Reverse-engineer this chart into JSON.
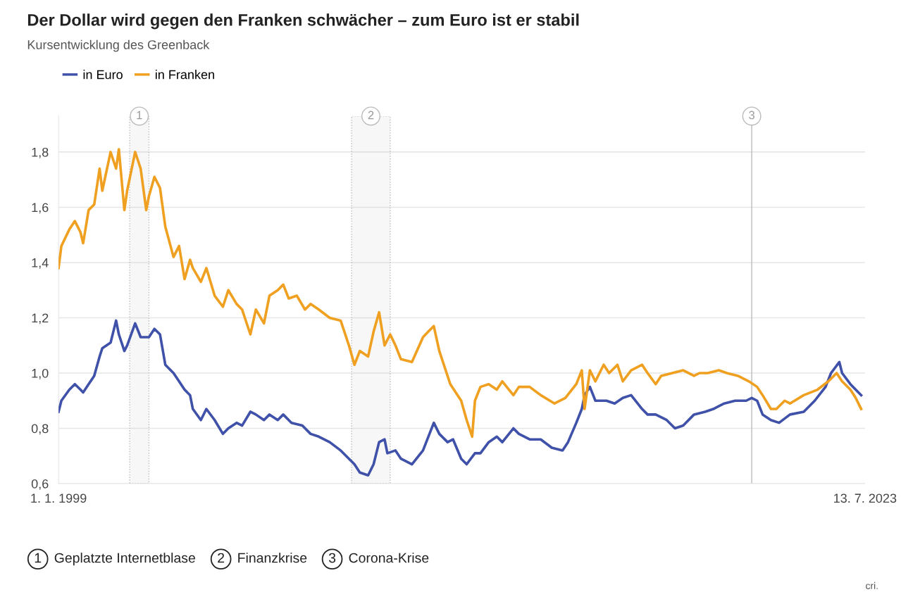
{
  "chart_data": {
    "type": "line",
    "title": "Der Dollar wird gegen den Franken schwächer – zum Euro ist er stabil",
    "subtitle": "Kursentwicklung des Greenback",
    "legend": "top left",
    "grid": "y",
    "line_style": "solid",
    "xlim": [
      "1999-01-01",
      "2023-07-13"
    ],
    "xticks": [
      {
        "value": "1999-01-01",
        "label": "1. 1. 1999"
      },
      {
        "value": "2023-07-13",
        "label": "13. 7. 2023"
      }
    ],
    "ylim": [
      0.6,
      1.93
    ],
    "yticks": [
      {
        "value": 0.6,
        "label": "0,6"
      },
      {
        "value": 0.8,
        "label": "0,8"
      },
      {
        "value": 1.0,
        "label": "1,0"
      },
      {
        "value": 1.2,
        "label": "1,2"
      },
      {
        "value": 1.4,
        "label": "1,4"
      },
      {
        "value": 1.6,
        "label": "1,6"
      },
      {
        "value": 1.8,
        "label": "1,8"
      }
    ],
    "series": [
      {
        "name": "in Euro",
        "color": "#3f51a8",
        "x": [
          "1999-01",
          "1999-02",
          "1999-05",
          "1999-07",
          "1999-09",
          "1999-10",
          "1999-12",
          "2000-02",
          "2000-04",
          "2000-05",
          "2000-08",
          "2000-10",
          "2000-11",
          "2001-01",
          "2001-02",
          "2001-05",
          "2001-07",
          "2001-10",
          "2001-12",
          "2002-02",
          "2002-04",
          "2002-07",
          "2002-09",
          "2002-11",
          "2003-01",
          "2003-02",
          "2003-05",
          "2003-07",
          "2003-10",
          "2004-01",
          "2004-03",
          "2004-06",
          "2004-08",
          "2004-11",
          "2005-01",
          "2005-04",
          "2005-06",
          "2005-09",
          "2005-11",
          "2006-02",
          "2006-06",
          "2006-09",
          "2006-12",
          "2007-04",
          "2007-08",
          "2007-11",
          "2008-01",
          "2008-03",
          "2008-06",
          "2008-08",
          "2008-10",
          "2008-12",
          "2009-01",
          "2009-04",
          "2009-06",
          "2009-10",
          "2010-02",
          "2010-06",
          "2010-08",
          "2010-11",
          "2011-01",
          "2011-04",
          "2011-06",
          "2011-09",
          "2011-11",
          "2012-02",
          "2012-05",
          "2012-07",
          "2012-11",
          "2013-01",
          "2013-05",
          "2013-09",
          "2014-01",
          "2014-05",
          "2014-07",
          "2014-10",
          "2014-12",
          "2015-01",
          "2015-03",
          "2015-05",
          "2015-09",
          "2015-12",
          "2016-03",
          "2016-06",
          "2016-10",
          "2016-12",
          "2017-03",
          "2017-07",
          "2017-10",
          "2018-01",
          "2018-05",
          "2018-09",
          "2018-12",
          "2019-04",
          "2019-08",
          "2019-12",
          "2020-02",
          "2020-04",
          "2020-06",
          "2020-09",
          "2020-12",
          "2021-04",
          "2021-09",
          "2022-01",
          "2022-05",
          "2022-07",
          "2022-10",
          "2022-11",
          "2023-02",
          "2023-04",
          "2023-06"
        ],
        "values": [
          0.86,
          0.9,
          0.94,
          0.96,
          0.94,
          0.93,
          0.96,
          0.99,
          1.06,
          1.09,
          1.11,
          1.19,
          1.14,
          1.08,
          1.1,
          1.18,
          1.13,
          1.13,
          1.16,
          1.14,
          1.03,
          1.0,
          0.97,
          0.94,
          0.92,
          0.87,
          0.83,
          0.87,
          0.83,
          0.78,
          0.8,
          0.82,
          0.81,
          0.86,
          0.85,
          0.83,
          0.85,
          0.83,
          0.85,
          0.82,
          0.81,
          0.78,
          0.77,
          0.75,
          0.72,
          0.69,
          0.67,
          0.64,
          0.63,
          0.67,
          0.75,
          0.76,
          0.71,
          0.72,
          0.69,
          0.67,
          0.72,
          0.82,
          0.78,
          0.75,
          0.76,
          0.69,
          0.67,
          0.71,
          0.71,
          0.75,
          0.77,
          0.75,
          0.8,
          0.78,
          0.76,
          0.76,
          0.73,
          0.72,
          0.75,
          0.82,
          0.87,
          0.92,
          0.95,
          0.9,
          0.9,
          0.89,
          0.91,
          0.92,
          0.87,
          0.85,
          0.85,
          0.83,
          0.8,
          0.81,
          0.85,
          0.86,
          0.87,
          0.89,
          0.9,
          0.9,
          0.91,
          0.9,
          0.85,
          0.83,
          0.82,
          0.85,
          0.86,
          0.9,
          0.95,
          1.0,
          1.04,
          1.0,
          0.96,
          0.94,
          0.92
        ]
      },
      {
        "name": "in Franken",
        "color": "#f0a020",
        "x": [
          "1999-01",
          "1999-02",
          "1999-05",
          "1999-07",
          "1999-09",
          "1999-10",
          "1999-12",
          "2000-02",
          "2000-04",
          "2000-05",
          "2000-08",
          "2000-10",
          "2000-11",
          "2001-01",
          "2001-02",
          "2001-05",
          "2001-07",
          "2001-09",
          "2001-10",
          "2001-12",
          "2002-02",
          "2002-04",
          "2002-07",
          "2002-09",
          "2002-11",
          "2003-01",
          "2003-02",
          "2003-05",
          "2003-07",
          "2003-10",
          "2004-01",
          "2004-03",
          "2004-06",
          "2004-08",
          "2004-11",
          "2005-01",
          "2005-04",
          "2005-06",
          "2005-09",
          "2005-11",
          "2006-01",
          "2006-04",
          "2006-07",
          "2006-09",
          "2006-12",
          "2007-04",
          "2007-08",
          "2007-11",
          "2008-01",
          "2008-03",
          "2008-06",
          "2008-08",
          "2008-10",
          "2008-12",
          "2009-02",
          "2009-04",
          "2009-06",
          "2009-10",
          "2010-02",
          "2010-04",
          "2010-06",
          "2010-08",
          "2010-12",
          "2011-04",
          "2011-06",
          "2011-08",
          "2011-09",
          "2011-11",
          "2012-02",
          "2012-05",
          "2012-07",
          "2012-11",
          "2013-01",
          "2013-05",
          "2013-09",
          "2014-02",
          "2014-06",
          "2014-10",
          "2014-12",
          "2015-01",
          "2015-03",
          "2015-05",
          "2015-08",
          "2015-10",
          "2016-01",
          "2016-03",
          "2016-06",
          "2016-10",
          "2016-12",
          "2017-03",
          "2017-05",
          "2017-09",
          "2018-01",
          "2018-05",
          "2018-07",
          "2018-10",
          "2019-02",
          "2019-05",
          "2019-09",
          "2020-01",
          "2020-04",
          "2020-06",
          "2020-09",
          "2020-11",
          "2021-02",
          "2021-04",
          "2021-09",
          "2022-02",
          "2022-06",
          "2022-09",
          "2022-11",
          "2023-02",
          "2023-04",
          "2023-06"
        ],
        "values": [
          1.38,
          1.46,
          1.52,
          1.55,
          1.51,
          1.47,
          1.59,
          1.61,
          1.74,
          1.66,
          1.8,
          1.74,
          1.81,
          1.59,
          1.66,
          1.8,
          1.74,
          1.59,
          1.64,
          1.71,
          1.67,
          1.53,
          1.42,
          1.46,
          1.34,
          1.41,
          1.38,
          1.33,
          1.38,
          1.28,
          1.24,
          1.3,
          1.25,
          1.23,
          1.14,
          1.23,
          1.18,
          1.28,
          1.3,
          1.32,
          1.27,
          1.28,
          1.23,
          1.25,
          1.23,
          1.2,
          1.19,
          1.1,
          1.03,
          1.08,
          1.06,
          1.15,
          1.22,
          1.1,
          1.14,
          1.1,
          1.05,
          1.04,
          1.13,
          1.15,
          1.17,
          1.08,
          0.96,
          0.9,
          0.83,
          0.77,
          0.9,
          0.95,
          0.96,
          0.94,
          0.97,
          0.92,
          0.95,
          0.95,
          0.92,
          0.89,
          0.91,
          0.96,
          1.01,
          0.87,
          1.01,
          0.97,
          1.03,
          1.0,
          1.03,
          0.97,
          1.01,
          1.03,
          1.0,
          0.96,
          0.99,
          1.0,
          1.01,
          0.99,
          1.0,
          1.0,
          1.01,
          1.0,
          0.99,
          0.97,
          0.95,
          0.92,
          0.87,
          0.87,
          0.9,
          0.89,
          0.92,
          0.94,
          0.97,
          1.0,
          0.97,
          0.94,
          0.91,
          0.87
        ]
      }
    ],
    "bands": [
      {
        "axis": "x",
        "from": "2001-03",
        "to": "2001-10",
        "label": "1",
        "color": "#bbbbbb"
      },
      {
        "axis": "x",
        "from": "2007-12",
        "to": "2009-02",
        "label": "2",
        "color": "#bbbbbb"
      }
    ],
    "ref_lines": [
      {
        "axis": "x",
        "value": "2020-02",
        "label": "3",
        "color": "#bbbbbb"
      }
    ],
    "annotations": [
      "Geplatzte Internetblase",
      "Finanzkrise",
      "Corona-Krise",
      "cri."
    ]
  }
}
